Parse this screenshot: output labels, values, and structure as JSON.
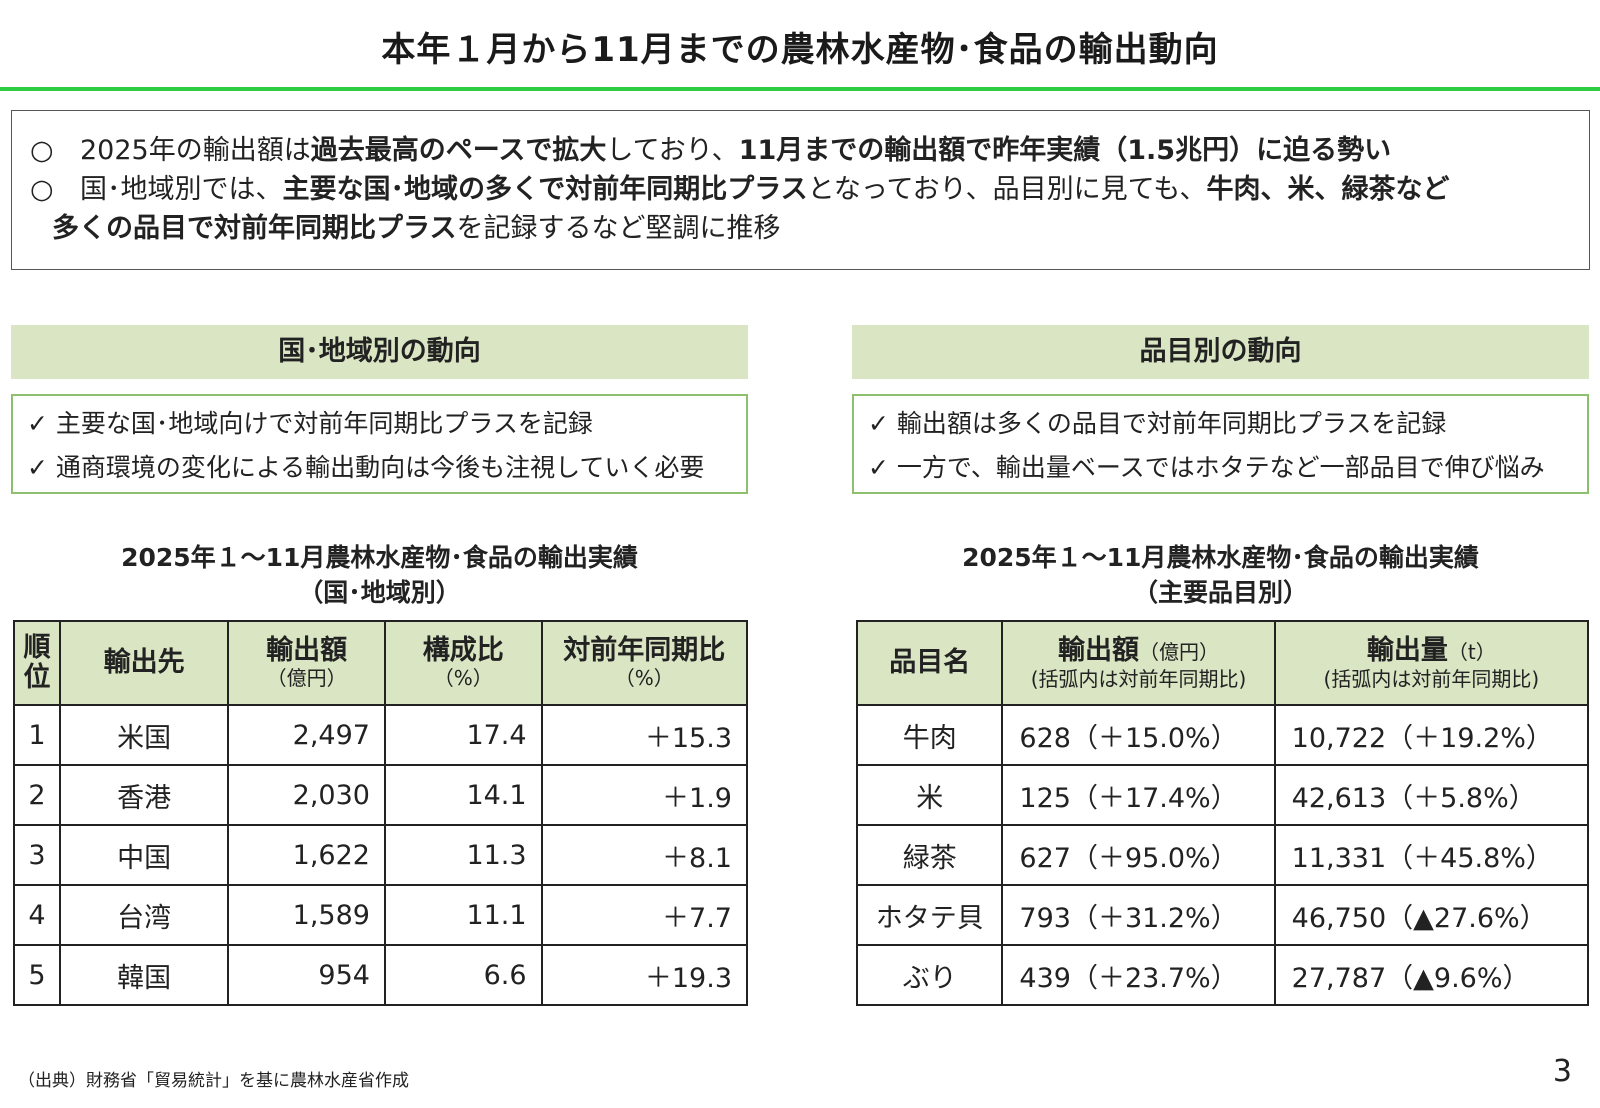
{
  "title": "本年１月から11月までの農林水産物･食品の輸出動向",
  "summary": {
    "line1": {
      "mark": "○",
      "t1": "2025年の輸出額は",
      "b1": "過去最高のペースで拡大",
      "t2": "しており、",
      "b2": "11月までの輸出額で昨年実績（1.5兆円）に迫る勢い"
    },
    "line2": {
      "mark": "○",
      "t1": "国･地域別では、",
      "b1": "主要な国･地域の多くで対前年同期比プラス",
      "t2": "となっており、品目別に見ても、",
      "b2": "牛肉、米、緑茶など"
    },
    "line3": {
      "b1": "多くの品目で対前年同期比プラス",
      "t1": "を記録するなど堅調に推移"
    }
  },
  "left": {
    "heading": "国･地域別の動向",
    "checks": [
      "✓ 主要な国･地域向けで対前年同期比プラスを記録",
      "✓ 通商環境の変化による輸出動向は今後も注視していく必要"
    ],
    "table_title_1": "2025年１～11月農林水産物･食品の輸出実績",
    "table_title_2": "（国･地域別）",
    "headers": {
      "rank_1": "順",
      "rank_2": "位",
      "dest": "輸出先",
      "amount": "輸出額",
      "amount_unit": "（億円）",
      "share": "構成比",
      "share_unit": "（%）",
      "yoy": "対前年同期比",
      "yoy_unit": "（%）"
    },
    "rows": [
      {
        "rank": "1",
        "dest": "米国",
        "amount": "2,497",
        "share": "17.4",
        "yoy": "＋15.3"
      },
      {
        "rank": "2",
        "dest": "香港",
        "amount": "2,030",
        "share": "14.1",
        "yoy": "＋1.9"
      },
      {
        "rank": "3",
        "dest": "中国",
        "amount": "1,622",
        "share": "11.3",
        "yoy": "＋8.1"
      },
      {
        "rank": "4",
        "dest": "台湾",
        "amount": "1,589",
        "share": "11.1",
        "yoy": "＋7.7"
      },
      {
        "rank": "5",
        "dest": "韓国",
        "amount": "954",
        "share": "6.6",
        "yoy": "＋19.3"
      }
    ]
  },
  "right": {
    "heading": "品目別の動向",
    "checks": [
      "✓ 輸出額は多くの品目で対前年同期比プラスを記録",
      "✓ 一方で、輸出量ベースではホタテなど一部品目で伸び悩み"
    ],
    "table_title_1": "2025年１～11月農林水産物･食品の輸出実績",
    "table_title_2": "（主要品目別）",
    "headers": {
      "item": "品目名",
      "amount": "輸出額",
      "amount_unit": "（億円）",
      "amount_note": "(括弧内は対前年同期比)",
      "volume": "輸出量",
      "volume_unit": "（t）",
      "volume_note": "(括弧内は対前年同期比)"
    },
    "rows": [
      {
        "item": "牛肉",
        "amount": "628（＋15.0%）",
        "volume": "10,722（＋19.2%）"
      },
      {
        "item": "米",
        "amount": "125（＋17.4%）",
        "volume": "42,613（＋5.8%）"
      },
      {
        "item": "緑茶",
        "amount": "627（＋95.0%）",
        "volume": "11,331（＋45.8%）"
      },
      {
        "item": "ホタテ貝",
        "amount": "793（＋31.2%）",
        "volume": "46,750（▲27.6%）"
      },
      {
        "item": "ぶり",
        "amount": "439（＋23.7%）",
        "volume": "27,787（▲9.6%）"
      }
    ]
  },
  "source": "（出典）財務省「貿易統計」を基に農林水産省作成",
  "page_number": "3",
  "colors": {
    "accent_rule": "#2ecc40",
    "header_fill": "#d9e5c3",
    "box_border": "#8cbf6e"
  }
}
